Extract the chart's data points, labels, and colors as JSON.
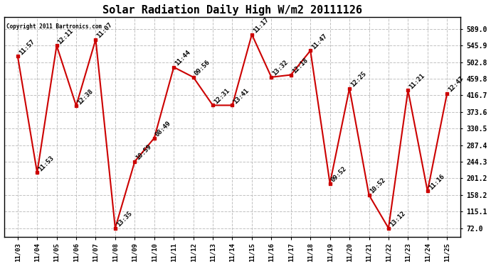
{
  "title": "Solar Radiation Daily High W/m2 20111126",
  "copyright": "Copyright 2011 Bartronics.com",
  "x_labels": [
    "11/03",
    "11/04",
    "11/05",
    "11/06",
    "11/07",
    "11/08",
    "11/09",
    "11/10",
    "11/11",
    "11/12",
    "11/13",
    "11/14",
    "11/15",
    "11/16",
    "11/17",
    "11/18",
    "11/19",
    "11/20",
    "11/21",
    "11/22",
    "11/23",
    "11/24",
    "11/25"
  ],
  "values": [
    519,
    216,
    546,
    390,
    562,
    72,
    245,
    306,
    490,
    464,
    391,
    391,
    575,
    464,
    470,
    533,
    188,
    435,
    158,
    72,
    430,
    168,
    422
  ],
  "times": [
    "11:57",
    "11:53",
    "12:11",
    "12:38",
    "11:07",
    "13:35",
    "10:59",
    "08:49",
    "11:44",
    "09:56",
    "12:31",
    "13:41",
    "11:17",
    "13:32",
    "12:18",
    "11:47",
    "09:52",
    "12:25",
    "10:52",
    "13:12",
    "11:21",
    "11:16",
    "12:47"
  ],
  "yticks": [
    72.0,
    115.1,
    158.2,
    201.2,
    244.3,
    287.4,
    330.5,
    373.6,
    416.7,
    459.8,
    502.8,
    545.9,
    589.0
  ],
  "line_color": "#cc0000",
  "marker_color": "#cc0000",
  "bg_color": "#ffffff",
  "grid_color": "#bbbbbb",
  "title_fontsize": 11,
  "annotation_fontsize": 6.5
}
